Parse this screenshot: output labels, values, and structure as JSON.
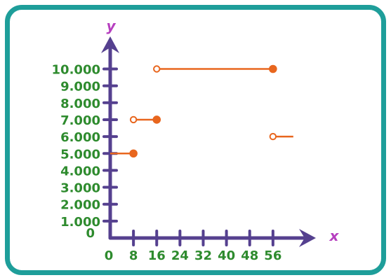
{
  "chart_data": {
    "type": "line",
    "title": "",
    "xlabel": "x",
    "ylabel": "y",
    "x_ticks": [
      "0",
      "8",
      "16",
      "24",
      "32",
      "40",
      "48",
      "56"
    ],
    "y_ticks": [
      "1.000",
      "2.000",
      "3.000",
      "4.000",
      "5.000",
      "6.000",
      "7.000",
      "8.000",
      "9.000",
      "10.000"
    ],
    "y_zero_label": "0",
    "segments": [
      {
        "x_start": 0,
        "x_end": 8,
        "y": 5000,
        "open_start": false,
        "open_end": false,
        "start_marker": false,
        "end_marker": true
      },
      {
        "x_start": 8,
        "x_end": 16,
        "y": 7000,
        "open_start": true,
        "open_end": false,
        "start_marker": true,
        "end_marker": true
      },
      {
        "x_start": 16,
        "x_end": 56,
        "y": 10000,
        "open_start": true,
        "open_end": false,
        "start_marker": true,
        "end_marker": true
      },
      {
        "x_start": 56,
        "x_end": 63,
        "y": 6000,
        "open_start": true,
        "open_end": false,
        "start_marker": true,
        "end_marker": false
      }
    ],
    "colors": {
      "axis": "#55408f",
      "tick_labels": "#2e8b2e",
      "axis_names": "#b63fbf",
      "series": "#e8661e",
      "frame": "#1e9e9a"
    }
  }
}
